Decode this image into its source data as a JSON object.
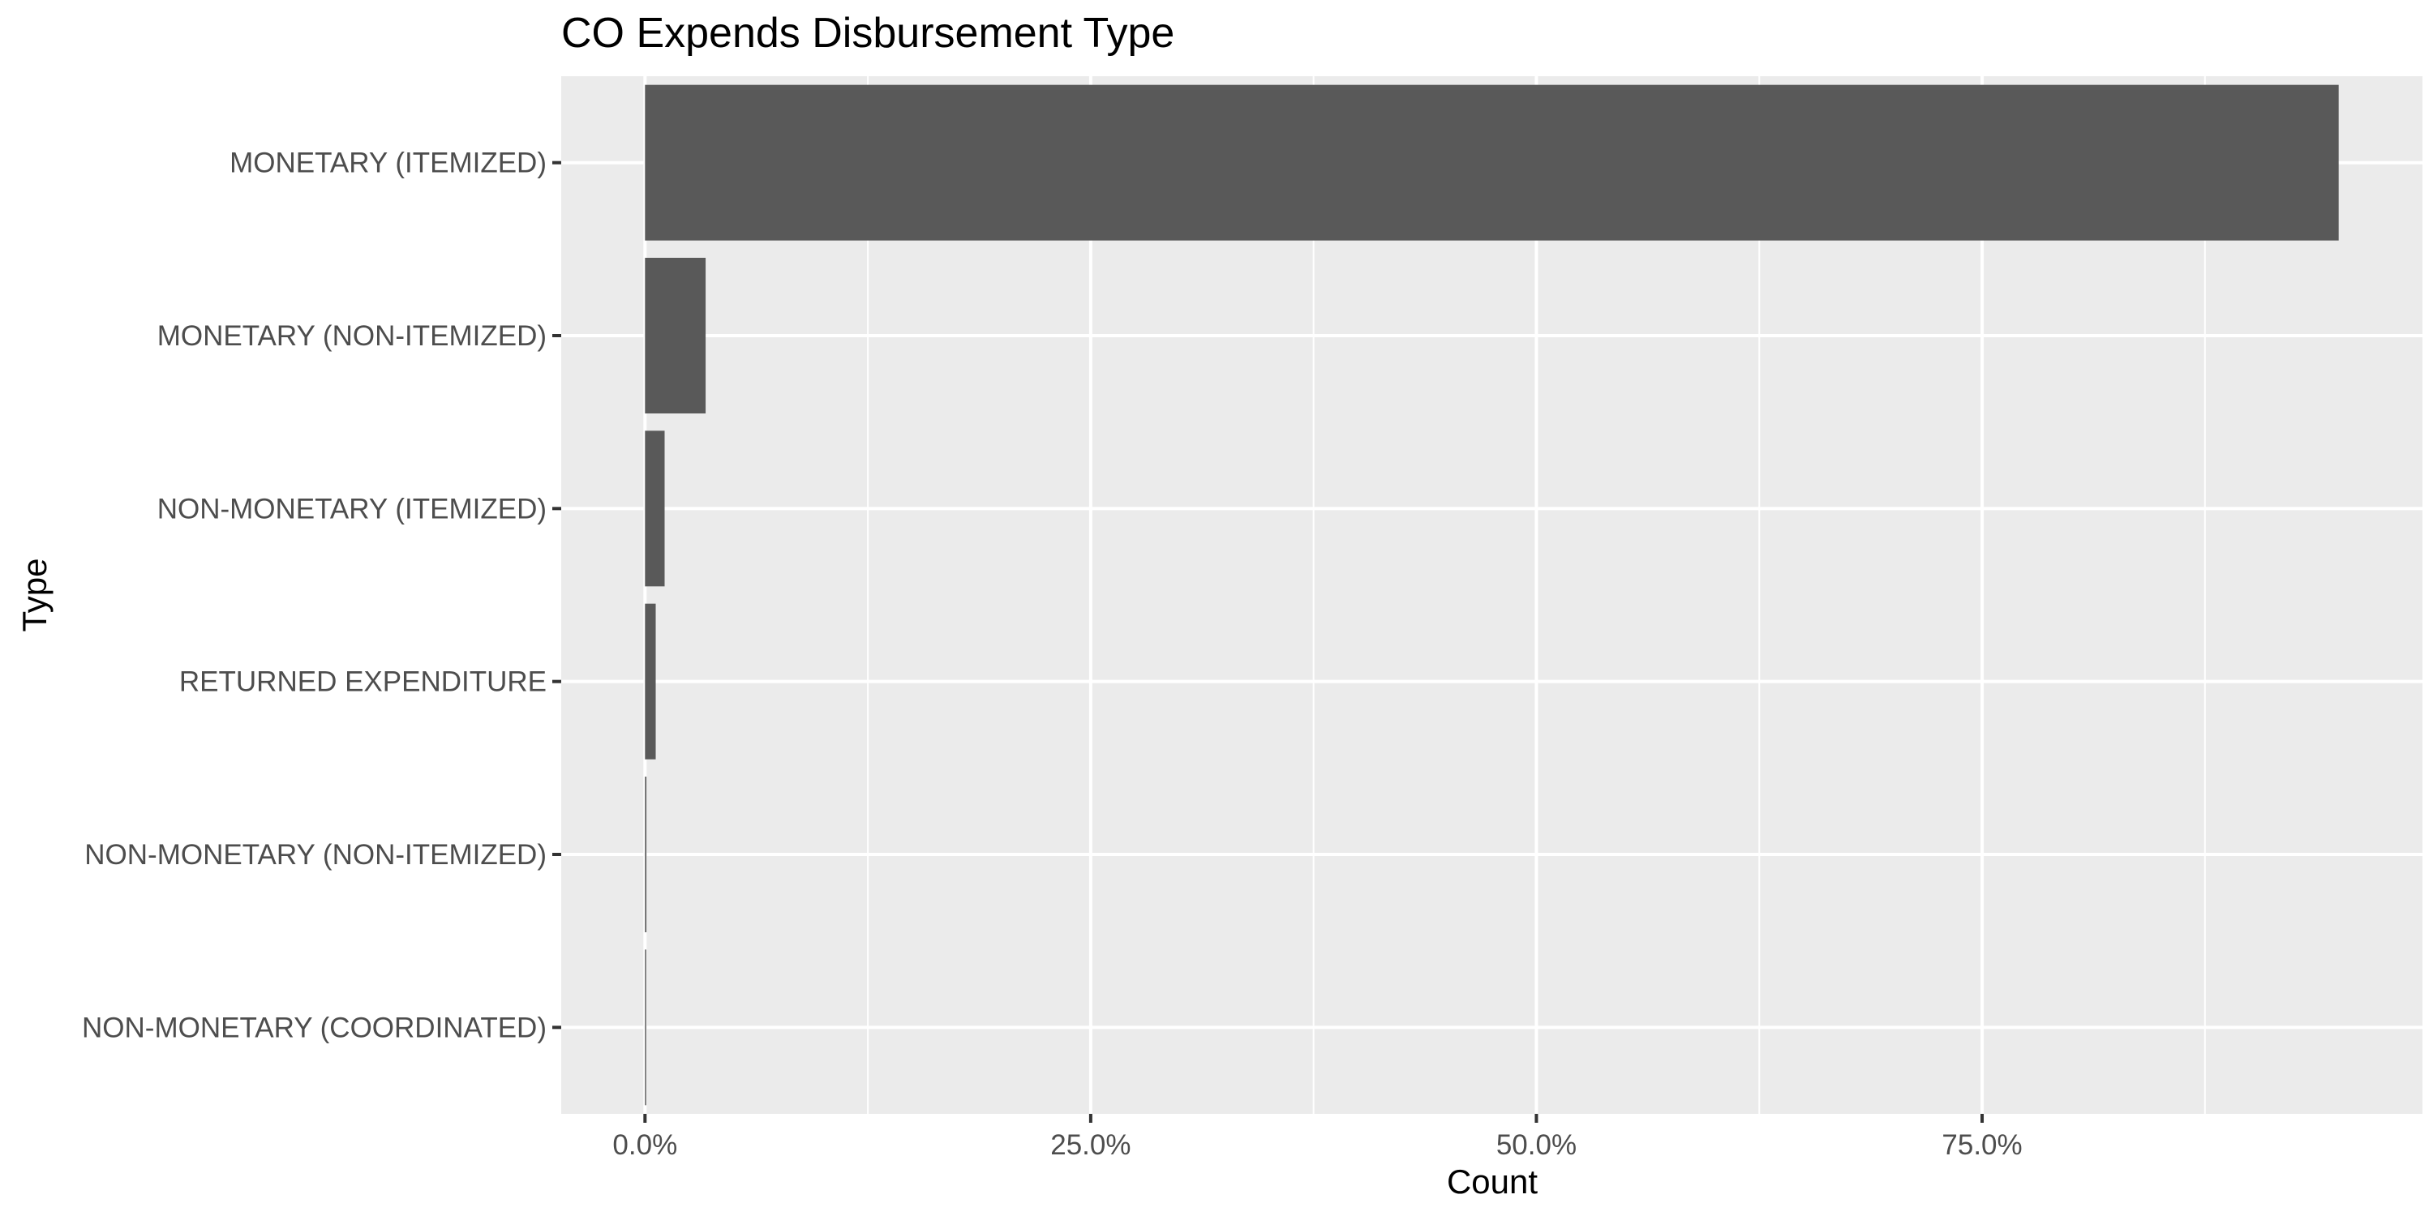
{
  "chart_data": {
    "type": "bar",
    "orientation": "horizontal",
    "title": "CO Expends Disbursement Type",
    "xlabel": "Count",
    "ylabel": "Type",
    "categories": [
      "MONETARY (ITEMIZED)",
      "MONETARY (NON-ITEMIZED)",
      "NON-MONETARY (ITEMIZED)",
      "RETURNED EXPENDITURE",
      "NON-MONETARY (NON-ITEMIZED)",
      "NON-MONETARY (COORDINATED)"
    ],
    "values": [
      0.95,
      0.034,
      0.011,
      0.006,
      0.0008,
      0.0006
    ],
    "xlim": [
      -0.047,
      0.997
    ],
    "x_ticks": [
      0,
      0.25,
      0.5,
      0.75
    ],
    "x_tick_labels": [
      "0.0%",
      "25.0%",
      "50.0%",
      "75.0%"
    ],
    "x_minor_ticks": [
      0.125,
      0.375,
      0.625,
      0.875
    ],
    "grid": true,
    "legend": "none",
    "colors": {
      "bar": "#595959",
      "panel": "#ebebeb",
      "grid": "#ffffff",
      "tick_label": "#4d4d4d",
      "tick_mark": "#333333"
    }
  }
}
